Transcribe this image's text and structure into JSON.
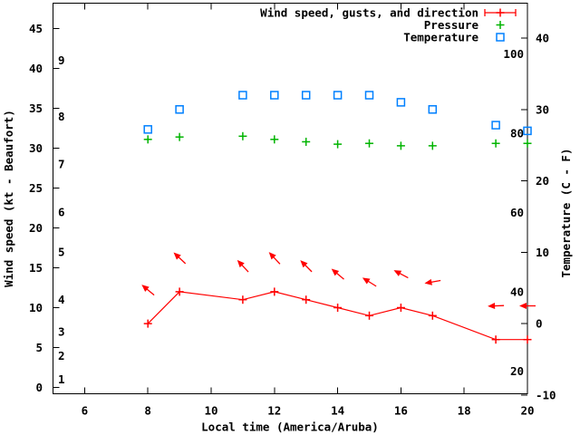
{
  "chart_data": {
    "type": "line",
    "title": "",
    "xlabel": "Local time (America/Aruba)",
    "ylabel_left": "Wind speed (kt - Beaufort)",
    "ylabel_right": "Temperature (C - F)",
    "background_color": "#ffffff",
    "grid": false,
    "legend_position": "top-right-inside",
    "x_hours": [
      8,
      9,
      11,
      12,
      13,
      14,
      15,
      16,
      17,
      19,
      20
    ],
    "series": [
      {
        "name": "Wind speed, gusts, and direction",
        "color": "#ff0000",
        "marker": "plus-with-errorbar-sample",
        "axis": "left-kt",
        "values_kt": [
          8,
          12,
          11,
          12,
          11,
          10,
          9,
          10,
          9,
          6,
          6
        ],
        "gusts_kt": [
          12,
          16,
          15,
          16,
          15,
          14,
          13,
          14,
          13,
          10,
          10
        ],
        "dir_arrow_angles_deg": [
          140,
          137,
          133,
          133,
          135,
          140,
          148,
          152,
          190,
          182,
          180
        ]
      },
      {
        "name": "Pressure",
        "color": "#00b400",
        "marker": "plus",
        "axis": "unscaled (no pressure axis shown)",
        "plotted_kt_axis_values": [
          31.1,
          31.4,
          31.5,
          31.1,
          30.8,
          30.5,
          30.6,
          30.3,
          30.3,
          30.6,
          30.6
        ]
      },
      {
        "name": "Temperature",
        "color": "#0080ff",
        "marker": "open-square",
        "axis": "right-celsius",
        "values_c": [
          27.2,
          30,
          32,
          32,
          32,
          32,
          32,
          31,
          30,
          27.8,
          27
        ]
      }
    ],
    "axes": {
      "x": {
        "min": 5,
        "max": 20,
        "ticks": [
          6,
          8,
          10,
          12,
          14,
          16,
          18,
          20
        ],
        "mirrored_top_ticks": true
      },
      "y_left_kt": {
        "min": 0,
        "max": 45,
        "ticks": [
          0,
          5,
          10,
          15,
          20,
          25,
          30,
          35,
          40,
          45
        ]
      },
      "y_left_beaufort": {
        "ticks": [
          {
            "label": "1",
            "kt": 1
          },
          {
            "label": "2",
            "kt": 4
          },
          {
            "label": "3",
            "kt": 7
          },
          {
            "label": "4",
            "kt": 11
          },
          {
            "label": "5",
            "kt": 17
          },
          {
            "label": "6",
            "kt": 22
          },
          {
            "label": "7",
            "kt": 28
          },
          {
            "label": "8",
            "kt": 34
          },
          {
            "label": "9",
            "kt": 41
          }
        ]
      },
      "y_right_c": {
        "min": -10,
        "max": 40,
        "ticks": [
          -10,
          0,
          10,
          20,
          30,
          40
        ]
      },
      "y_right_f_labels": [
        20,
        40,
        60,
        80,
        100
      ]
    },
    "legend": [
      "Wind speed, gusts, and direction",
      "Pressure",
      "Temperature"
    ]
  },
  "colors": {
    "wind": "#ff0000",
    "pressure": "#00b400",
    "temperature": "#0080ff",
    "axis": "#000000",
    "background": "#ffffff"
  }
}
